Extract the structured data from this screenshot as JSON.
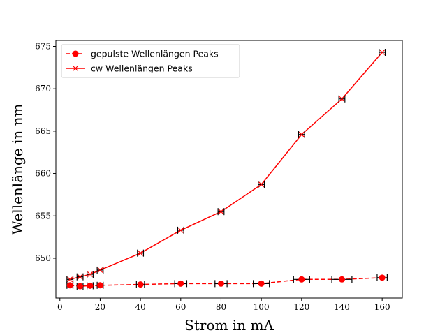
{
  "chart_data": {
    "type": "line",
    "xlabel": "Strom in mA",
    "ylabel": "Wellenlänge in nm",
    "xlim": [
      -2,
      170
    ],
    "ylim": [
      645.3,
      675.7
    ],
    "xticks": [
      0,
      20,
      40,
      60,
      80,
      100,
      120,
      140,
      160
    ],
    "yticks": [
      650,
      655,
      660,
      665,
      670,
      675
    ],
    "grid": false,
    "legend_position": "top-left",
    "series": [
      {
        "name": "gepulste Wellenlängen Peaks",
        "style": "dashed",
        "marker": "circle",
        "color": "#ff0000",
        "x": [
          5,
          10,
          15,
          20,
          40,
          60,
          80,
          100,
          120,
          140,
          160
        ],
        "y": [
          646.8,
          646.7,
          646.75,
          646.8,
          646.9,
          647.0,
          647.0,
          647.0,
          647.5,
          647.5,
          647.7
        ],
        "xerr": [
          1.5,
          1.5,
          1.5,
          1.5,
          2,
          3,
          3,
          4,
          4,
          5,
          2.5
        ]
      },
      {
        "name": "cw Wellenlängen Peaks",
        "style": "solid",
        "marker": "x",
        "color": "#ff0000",
        "x": [
          5,
          10,
          15,
          20,
          40,
          60,
          80,
          100,
          120,
          140,
          160
        ],
        "y": [
          647.5,
          647.8,
          648.1,
          648.6,
          650.6,
          653.3,
          655.5,
          658.7,
          664.6,
          668.8,
          674.3
        ],
        "xerr": [
          1.5,
          1.5,
          1.5,
          1.5,
          1.5,
          1.5,
          1.5,
          1.5,
          1.5,
          1.5,
          1.5
        ]
      }
    ]
  }
}
